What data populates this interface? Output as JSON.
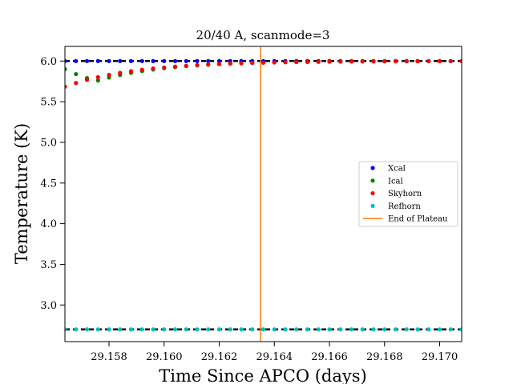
{
  "chart_data": {
    "type": "scatter",
    "title": "20/40 A, scanmode=3",
    "xlabel": "Time Since APCO (days)",
    "ylabel": "Temperature (K)",
    "xlim": [
      29.1564,
      29.1708
    ],
    "ylim": [
      2.55,
      6.18
    ],
    "xticks": [
      "29.158",
      "29.160",
      "29.162",
      "29.164",
      "29.166",
      "29.168",
      "29.170"
    ],
    "xtick_values": [
      29.158,
      29.16,
      29.162,
      29.164,
      29.166,
      29.168,
      29.17
    ],
    "yticks": [
      "3.0",
      "3.5",
      "4.0",
      "4.5",
      "5.0",
      "5.5",
      "6.0"
    ],
    "ytick_values": [
      3.0,
      3.5,
      4.0,
      4.5,
      5.0,
      5.5,
      6.0
    ],
    "grid": false,
    "legend_position": "center-right",
    "reference_lines": [
      {
        "axis": "y",
        "value": 6.0,
        "style": "dashed",
        "color": "#000000"
      },
      {
        "axis": "y",
        "value": 2.7,
        "style": "dashed",
        "color": "#000000"
      }
    ],
    "vline": {
      "name": "End of Plateau",
      "x": 29.1635,
      "color": "#ff7f0e"
    },
    "series": [
      {
        "name": "Xcal",
        "color": "#0000ff",
        "pattern": "flat",
        "base": 6.0,
        "x_start": 29.1564,
        "x_step": 0.0004,
        "count": 37
      },
      {
        "name": "Ical",
        "color": "#008000",
        "pattern": "ical",
        "x_start": 29.1564,
        "x_step": 0.0004,
        "count": 37
      },
      {
        "name": "Skyhorn",
        "color": "#ff0000",
        "pattern": "skyhorn",
        "x_start": 29.1564,
        "x_step": 0.0004,
        "count": 37
      },
      {
        "name": "Refhorn",
        "color": "#00bfbf",
        "pattern": "flat",
        "base": 2.7,
        "x_start": 29.1564,
        "x_step": 0.0004,
        "count": 37
      }
    ]
  }
}
